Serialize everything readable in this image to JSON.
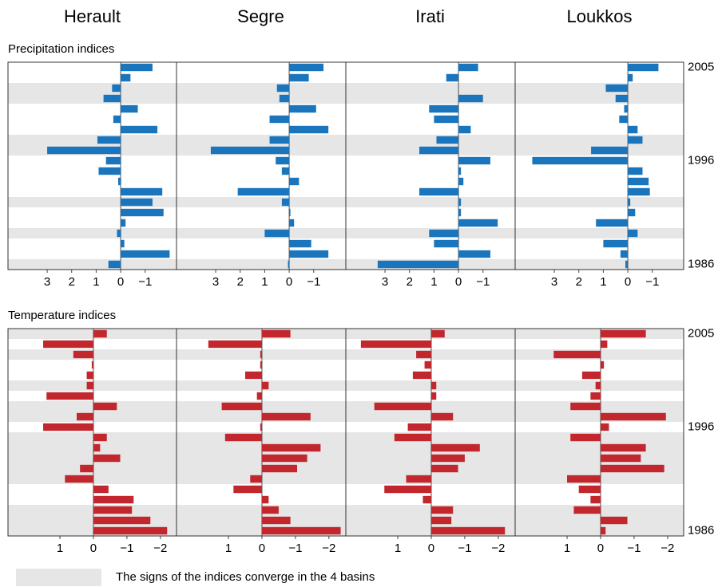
{
  "chart_data": {
    "type": "bar",
    "orientation": "horizontal",
    "reversed_x": true,
    "basins": [
      "Herault",
      "Segre",
      "Irati",
      "Loukkos"
    ],
    "categories": [
      "2005",
      null,
      null,
      null,
      null,
      null,
      null,
      null,
      null,
      "1996",
      null,
      null,
      null,
      null,
      null,
      null,
      null,
      null,
      null,
      "1986"
    ],
    "shade_color": "#e6e6e6",
    "legend": "The signs of the indices converge in the 4 basins",
    "panels": [
      {
        "title": "Precipitation indices",
        "color": "#1a75bc",
        "xlim": [
          4.6,
          -2.28
        ],
        "xticks": [
          3,
          2,
          1,
          0,
          {
            "value": -1,
            "label": "−1"
          }
        ],
        "shaded_rows": [
          2,
          3,
          7,
          8,
          13,
          16,
          19
        ],
        "series": [
          {
            "values": [
              -1.3,
              -0.4,
              0.35,
              0.7,
              -0.7,
              0.3,
              -1.5,
              0.95,
              3,
              0.6,
              0.9,
              0.1,
              -1.7,
              -1.3,
              -1.75,
              -0.2,
              0.15,
              -0.15,
              -2,
              0.5
            ]
          },
          {
            "values": [
              -1.4,
              -0.8,
              0.5,
              0.4,
              -1.1,
              0.8,
              -1.6,
              0.8,
              3.2,
              0.55,
              0.3,
              -0.4,
              2.1,
              0.3,
              -0.05,
              -0.2,
              1.0,
              -0.9,
              -1.6,
              0.05
            ]
          },
          {
            "values": [
              -0.8,
              0.5,
              0,
              -1.0,
              1.2,
              1.0,
              -0.5,
              0.9,
              1.6,
              -1.3,
              -0.1,
              -0.2,
              1.6,
              -0.1,
              -0.1,
              -1.6,
              1.2,
              1.0,
              -1.3,
              3.3
            ]
          },
          {
            "values": [
              -1.25,
              -0.2,
              0.9,
              0.5,
              0.15,
              0.35,
              -0.4,
              -0.6,
              1.5,
              3.9,
              -0.6,
              -0.85,
              -0.9,
              -0.1,
              -0.3,
              1.3,
              -0.4,
              1.0,
              0.3,
              0.1
            ]
          }
        ]
      },
      {
        "title": "Temperature indices",
        "color": "#c1272d",
        "xlim": [
          2.55,
          -2.48
        ],
        "xticks": [
          1,
          0,
          {
            "value": -1,
            "label": "−1"
          },
          {
            "value": -2,
            "label": "−2"
          }
        ],
        "shaded_rows": [
          0,
          2,
          5,
          7,
          8,
          10,
          11,
          12,
          13,
          14,
          17,
          18,
          19
        ],
        "series": [
          {
            "values": [
              -0.4,
              1.5,
              0.6,
              0.05,
              0.2,
              0.2,
              1.4,
              -0.7,
              0.5,
              1.5,
              -0.4,
              -0.2,
              -0.8,
              0.4,
              0.85,
              -0.45,
              -1.2,
              -1.15,
              -1.7,
              -2.2
            ]
          },
          {
            "values": [
              -0.85,
              1.6,
              0.05,
              0.05,
              0.5,
              -0.2,
              0.15,
              1.2,
              -1.45,
              0.05,
              1.1,
              -1.75,
              -1.35,
              -1.05,
              0.35,
              0.85,
              -0.2,
              -0.5,
              -0.85,
              -2.35
            ]
          },
          {
            "values": [
              -0.4,
              2.1,
              0.45,
              0.2,
              0.55,
              -0.15,
              -0.15,
              1.7,
              -0.65,
              0.7,
              1.1,
              -1.45,
              -1.0,
              -0.8,
              0.75,
              1.4,
              0.25,
              -0.65,
              -0.6,
              -2.2
            ]
          },
          {
            "values": [
              -1.35,
              -0.2,
              1.4,
              -0.1,
              0.55,
              0.15,
              0.3,
              0.9,
              -1.95,
              -0.25,
              0.9,
              -1.35,
              -1.2,
              -1.9,
              1.0,
              0.65,
              0.3,
              0.8,
              -0.8,
              -0.15
            ]
          }
        ]
      }
    ]
  }
}
